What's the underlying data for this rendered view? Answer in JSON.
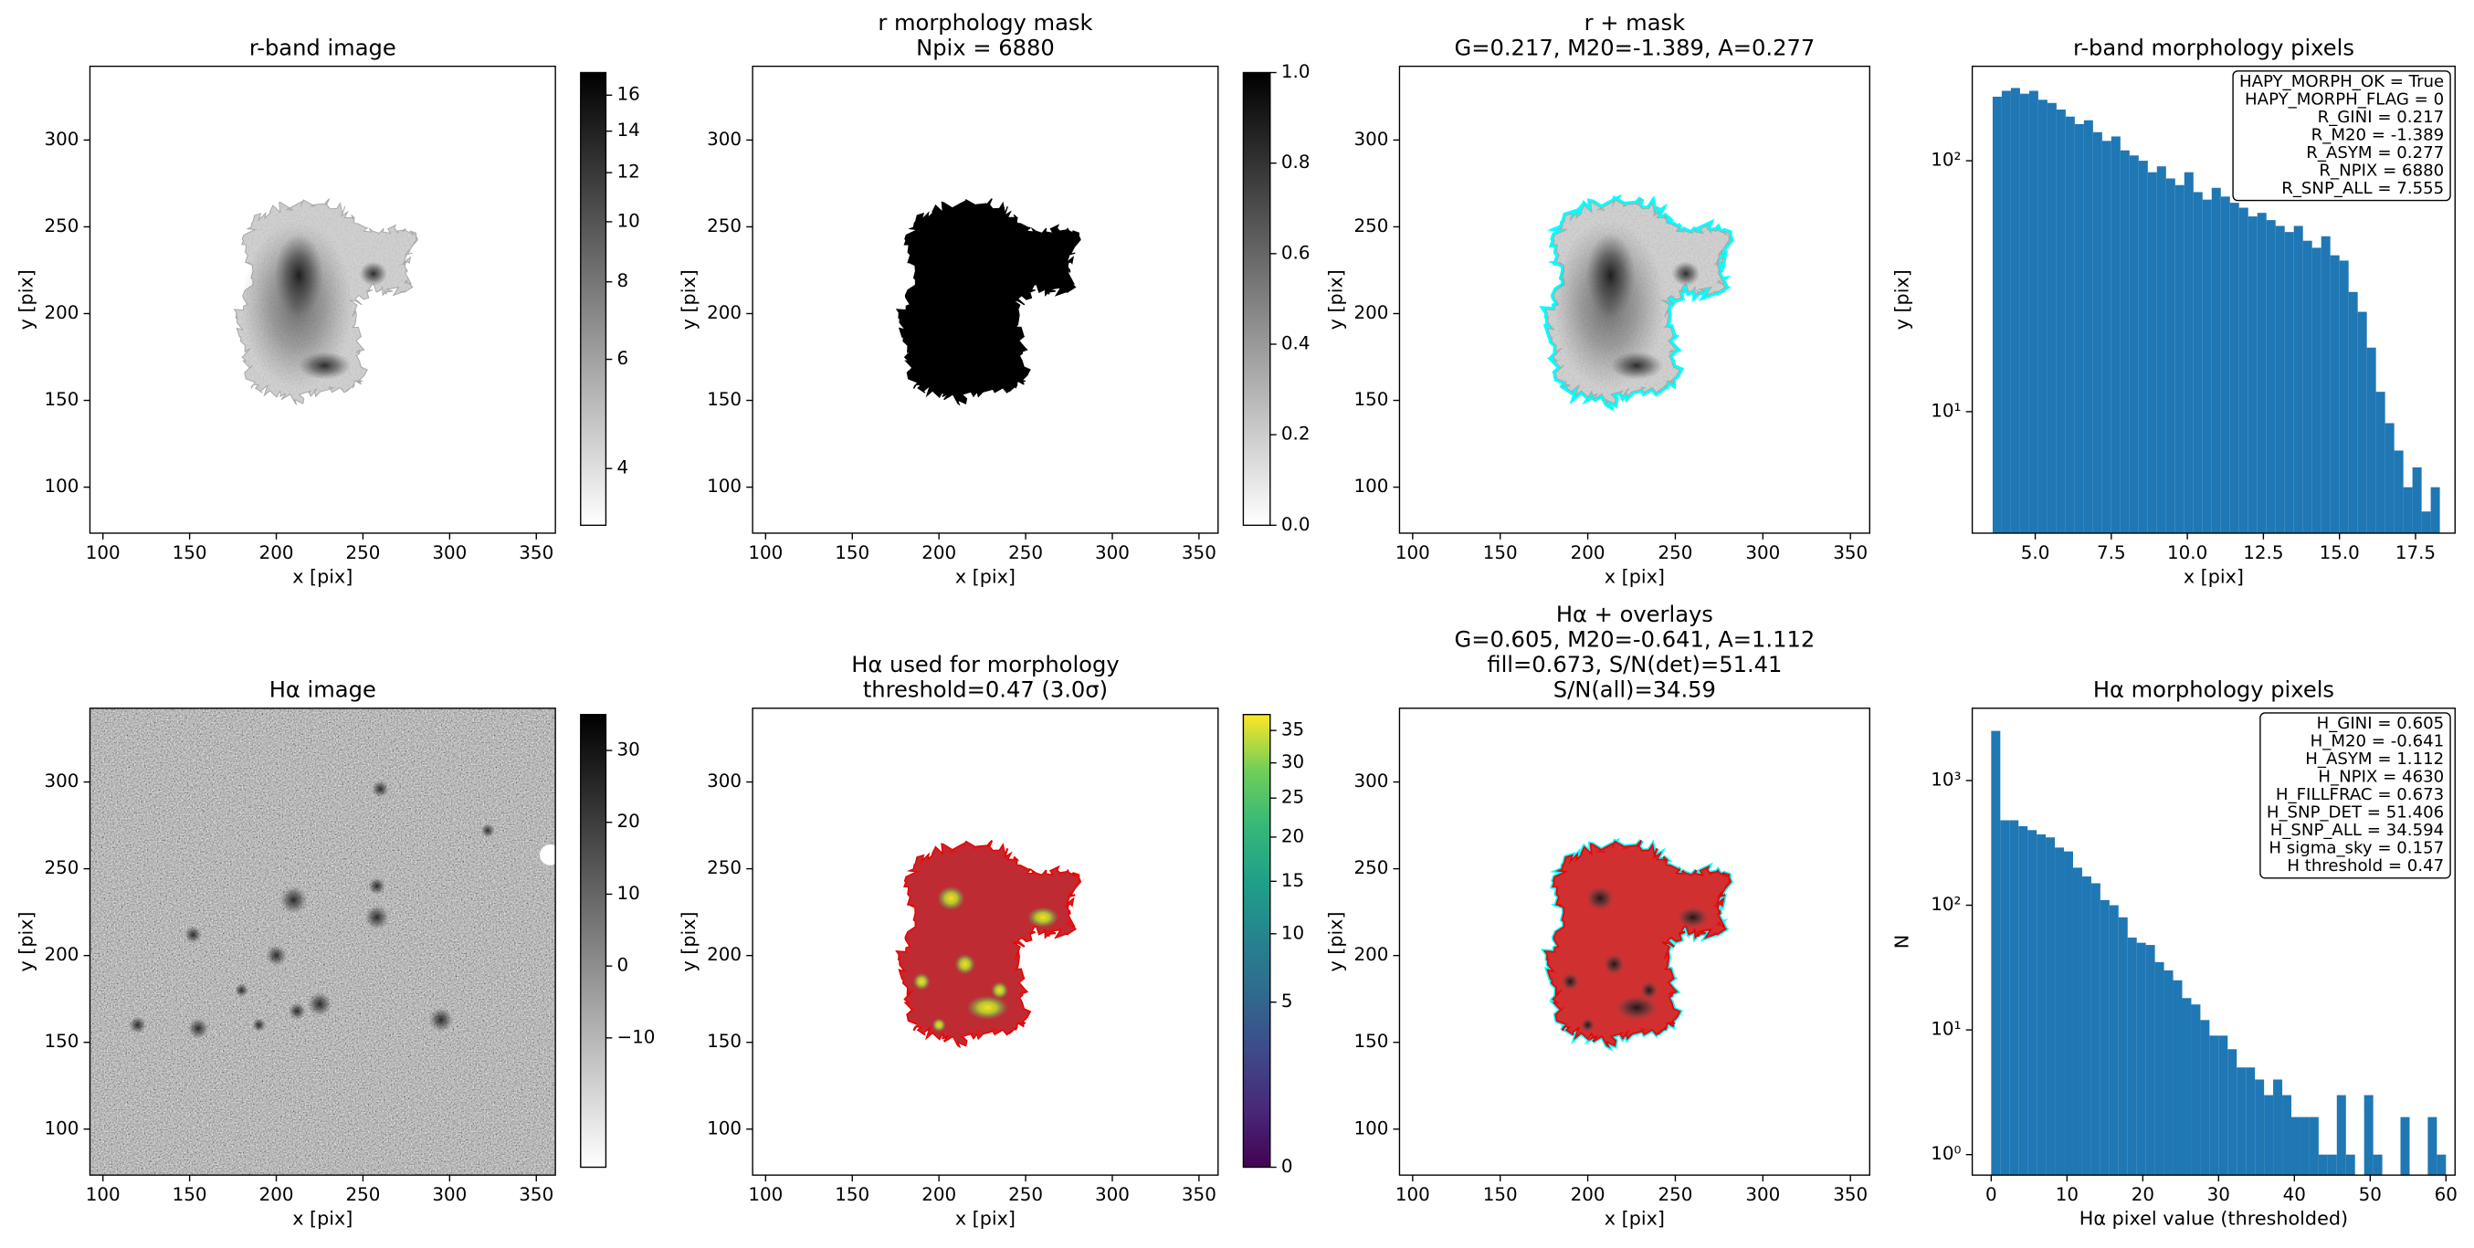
{
  "chart_data": [
    {
      "type": "image",
      "title": [
        "r-band image"
      ],
      "xlabel": "x [pix]",
      "ylabel": "y [pix]",
      "xlim": [
        92.5,
        361
      ],
      "ylim": [
        73.5,
        342.5
      ],
      "xticks": [
        100,
        150,
        200,
        250,
        300,
        350
      ],
      "yticks": [
        100,
        150,
        200,
        250,
        300
      ],
      "colorbar": {
        "cmap": "gray_r",
        "scale": "log",
        "clim": [
          3.24,
          17.4
        ],
        "ticks": [
          4,
          6,
          8,
          10,
          12,
          14,
          16
        ]
      }
    },
    {
      "type": "image",
      "title": [
        "r morphology mask",
        "Npix = 6880"
      ],
      "xlabel": "x [pix]",
      "ylabel": "y [pix]",
      "xlim": [
        92.5,
        361
      ],
      "ylim": [
        73.5,
        342.5
      ],
      "xticks": [
        100,
        150,
        200,
        250,
        300,
        350
      ],
      "yticks": [
        100,
        150,
        200,
        250,
        300
      ],
      "colorbar": {
        "cmap": "gray_r",
        "scale": "linear",
        "clim": [
          0,
          1
        ],
        "ticks": [
          {
            "value": 0,
            "label": "0.0"
          },
          0.2,
          0.4,
          0.6,
          0.8,
          {
            "value": 1,
            "label": "1.0"
          }
        ]
      }
    },
    {
      "type": "image",
      "title": [
        "r + mask",
        "G=0.217, M20=-1.389, A=0.277"
      ],
      "xlabel": "x [pix]",
      "ylabel": "y [pix]",
      "xlim": [
        92.5,
        361
      ],
      "ylim": [
        73.5,
        342.5
      ],
      "xticks": [
        100,
        150,
        200,
        250,
        300,
        350
      ],
      "yticks": [
        100,
        150,
        200,
        250,
        300
      ]
    },
    {
      "type": "histogram",
      "title": [
        "r-band morphology pixels"
      ],
      "xlabel": "x [pix]",
      "ylabel": "y [pix]",
      "color": "#1f77b4",
      "yscale": "log",
      "bins": [
        3.6,
        3.9,
        4.2,
        4.5,
        4.8,
        5.1,
        5.4,
        5.7,
        6.0,
        6.3,
        6.6,
        6.9,
        7.2,
        7.5,
        7.8,
        8.1,
        8.4,
        8.7,
        9.0,
        9.3,
        9.6,
        9.9,
        10.2,
        10.5,
        10.8,
        11.1,
        11.4,
        11.7,
        12.0,
        12.3,
        12.6,
        12.9,
        13.2,
        13.5,
        13.8,
        14.1,
        14.4,
        14.7,
        15.0,
        15.3,
        15.6,
        15.9,
        16.2,
        16.5,
        16.8,
        17.1,
        17.4,
        17.7,
        18.0,
        18.3,
        18.6
      ],
      "counts": [
        180,
        190,
        195,
        185,
        190,
        175,
        170,
        160,
        150,
        140,
        145,
        130,
        120,
        125,
        110,
        105,
        100,
        90,
        95,
        85,
        80,
        90,
        75,
        70,
        78,
        72,
        68,
        65,
        60,
        62,
        58,
        55,
        52,
        55,
        48,
        45,
        50,
        42,
        40,
        30,
        25,
        18,
        12,
        9,
        7,
        5,
        6,
        4,
        5,
        3
      ],
      "xlim": [
        2.93,
        18.8
      ],
      "ylim": [
        3.28,
        238
      ],
      "xticks": [
        {
          "value": 5,
          "label": "5.0"
        },
        7.5,
        {
          "value": 10,
          "label": "10.0"
        },
        12.5,
        {
          "value": 15,
          "label": "15.0"
        },
        17.5
      ],
      "yticks": [
        {
          "value": 10,
          "label": "10¹"
        },
        {
          "value": 100,
          "label": "10²"
        }
      ],
      "annotation": [
        "HAPY_MORPH_OK = True",
        "HAPY_MORPH_FLAG = 0",
        "R_GINI = 0.217",
        "R_M20 = -1.389",
        "R_ASYM = 0.277",
        "R_NPIX = 6880",
        "R_SNP_ALL = 7.555"
      ]
    },
    {
      "type": "image",
      "title": [
        "Hα image"
      ],
      "xlabel": "x [pix]",
      "ylabel": "y [pix]",
      "xlim": [
        92.5,
        361
      ],
      "ylim": [
        73.5,
        342.5
      ],
      "xticks": [
        100,
        150,
        200,
        250,
        300,
        350
      ],
      "yticks": [
        100,
        150,
        200,
        250,
        300
      ],
      "colorbar": {
        "cmap": "gray_r",
        "scale": "linear",
        "clim": [
          -28,
          35
        ],
        "ticks": [
          {
            "value": -10,
            "label": "−10"
          },
          0,
          10,
          20,
          30
        ]
      }
    },
    {
      "type": "image",
      "title": [
        "Hα used for morphology",
        "threshold=0.47 (3.0σ)"
      ],
      "xlabel": "x [pix]",
      "ylabel": "y [pix]",
      "xlim": [
        92.5,
        361
      ],
      "ylim": [
        73.5,
        342.5
      ],
      "xticks": [
        100,
        150,
        200,
        250,
        300,
        350
      ],
      "yticks": [
        100,
        150,
        200,
        250,
        300
      ],
      "colorbar": {
        "cmap": "viridis",
        "scale": "sqrt",
        "clim": [
          0,
          37.6
        ],
        "ticks": [
          0,
          5,
          10,
          15,
          20,
          25,
          30,
          35
        ]
      }
    },
    {
      "type": "image",
      "title": [
        "Hα + overlays",
        "G=0.605, M20=-0.641, A=1.112",
        "fill=0.673, S/N(det)=51.41",
        "S/N(all)=34.59"
      ],
      "xlabel": "x [pix]",
      "ylabel": "y [pix]",
      "xlim": [
        92.5,
        361
      ],
      "ylim": [
        73.5,
        342.5
      ],
      "xticks": [
        100,
        150,
        200,
        250,
        300,
        350
      ],
      "yticks": [
        100,
        150,
        200,
        250,
        300
      ]
    },
    {
      "type": "histogram",
      "title": [
        "Hα morphology pixels"
      ],
      "xlabel": "Hα pixel value (thresholded)",
      "ylabel": "N",
      "color": "#1f77b4",
      "yscale": "log",
      "bins": [
        0,
        1.2,
        2.4,
        3.6,
        4.8,
        6,
        7.2,
        8.4,
        9.6,
        10.8,
        12,
        13.2,
        14.4,
        15.6,
        16.8,
        18,
        19.2,
        20.4,
        21.6,
        22.8,
        24,
        25.2,
        26.4,
        27.6,
        28.8,
        30,
        31.2,
        32.4,
        33.6,
        34.8,
        36,
        37.2,
        38.4,
        39.6,
        40.8,
        42,
        43.2,
        44.4,
        45.6,
        46.8,
        48,
        49.2,
        50.4,
        51.6,
        52.8,
        54,
        55.2,
        56.4,
        57.6,
        58.8,
        60
      ],
      "counts": [
        2500,
        480,
        480,
        430,
        400,
        370,
        350,
        290,
        270,
        200,
        170,
        150,
        110,
        100,
        80,
        55,
        50,
        48,
        35,
        30,
        25,
        18,
        16,
        12,
        9,
        9,
        7,
        5,
        5,
        4,
        3,
        4,
        3,
        2,
        2,
        2,
        1,
        1,
        3,
        1,
        0,
        3,
        1,
        0,
        0,
        2,
        0,
        0,
        2,
        1
      ],
      "xlim": [
        -2.5,
        61.2
      ],
      "ylim": [
        0.685,
        3800
      ],
      "xticks": [
        0,
        10,
        20,
        30,
        40,
        50,
        60
      ],
      "yticks": [
        {
          "value": 1,
          "label": "10⁰"
        },
        {
          "value": 10,
          "label": "10¹"
        },
        {
          "value": 100,
          "label": "10²"
        },
        {
          "value": 1000,
          "label": "10³"
        }
      ],
      "annotation": [
        "H_GINI = 0.605",
        "H_M20 = -0.641",
        "H_ASYM = 1.112",
        "H_NPIX = 4630",
        "H_FILLFRAC = 0.673",
        "H_SNP_DET = 51.406",
        "H_SNP_ALL = 34.594",
        "H sigma_sky = 0.157",
        "H threshold = 0.47"
      ]
    }
  ]
}
